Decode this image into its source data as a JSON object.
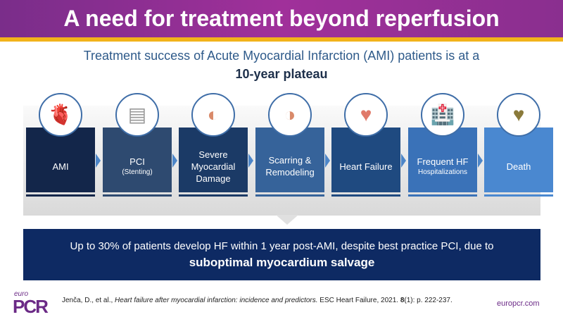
{
  "title": "A need for treatment beyond reperfusion",
  "subtitle": {
    "line1": "Treatment success of Acute Myocardial Infarction (AMI) patients is at a",
    "line2": "10-year plateau"
  },
  "steps": [
    {
      "label": "AMI",
      "sub": "",
      "icon": "heart-anatomy-icon",
      "color": "#13264a"
    },
    {
      "label": "PCI",
      "sub": "(Stenting)",
      "icon": "stent-icon",
      "color": "#2e4a70"
    },
    {
      "label": "Severe Myocardial Damage",
      "sub": "",
      "icon": "myocardium-section-icon",
      "color": "#1b3a66"
    },
    {
      "label": "Scarring & Remodeling",
      "sub": "",
      "icon": "scarred-myocardium-icon",
      "color": "#36639a"
    },
    {
      "label": "Heart Failure",
      "sub": "",
      "icon": "heart-icon",
      "color": "#1f4a80"
    },
    {
      "label": "Frequent HF",
      "sub": "Hospitalizations",
      "icon": "hospital-icon",
      "color": "#3a72b8"
    },
    {
      "label": "Death",
      "sub": "",
      "icon": "heart-pulse-icon",
      "color": "#4a88d0"
    }
  ],
  "banner": {
    "line1": "Up to 30% of patients develop HF within 1 year post-AMI,  despite best practice PCI, due to",
    "line2": "suboptimal myocardium salvage"
  },
  "footer": {
    "logo_small": "euro",
    "logo_big": "PCR",
    "citation_authors": "Jenča, D., et al., ",
    "citation_title": "Heart failure after myocardial infarction: incidence and predictors.",
    "citation_rest": " ESC Heart Failure, 2021. ",
    "citation_vol": "8",
    "citation_pages": "(1): p. 222-237.",
    "url": "europcr.com"
  }
}
